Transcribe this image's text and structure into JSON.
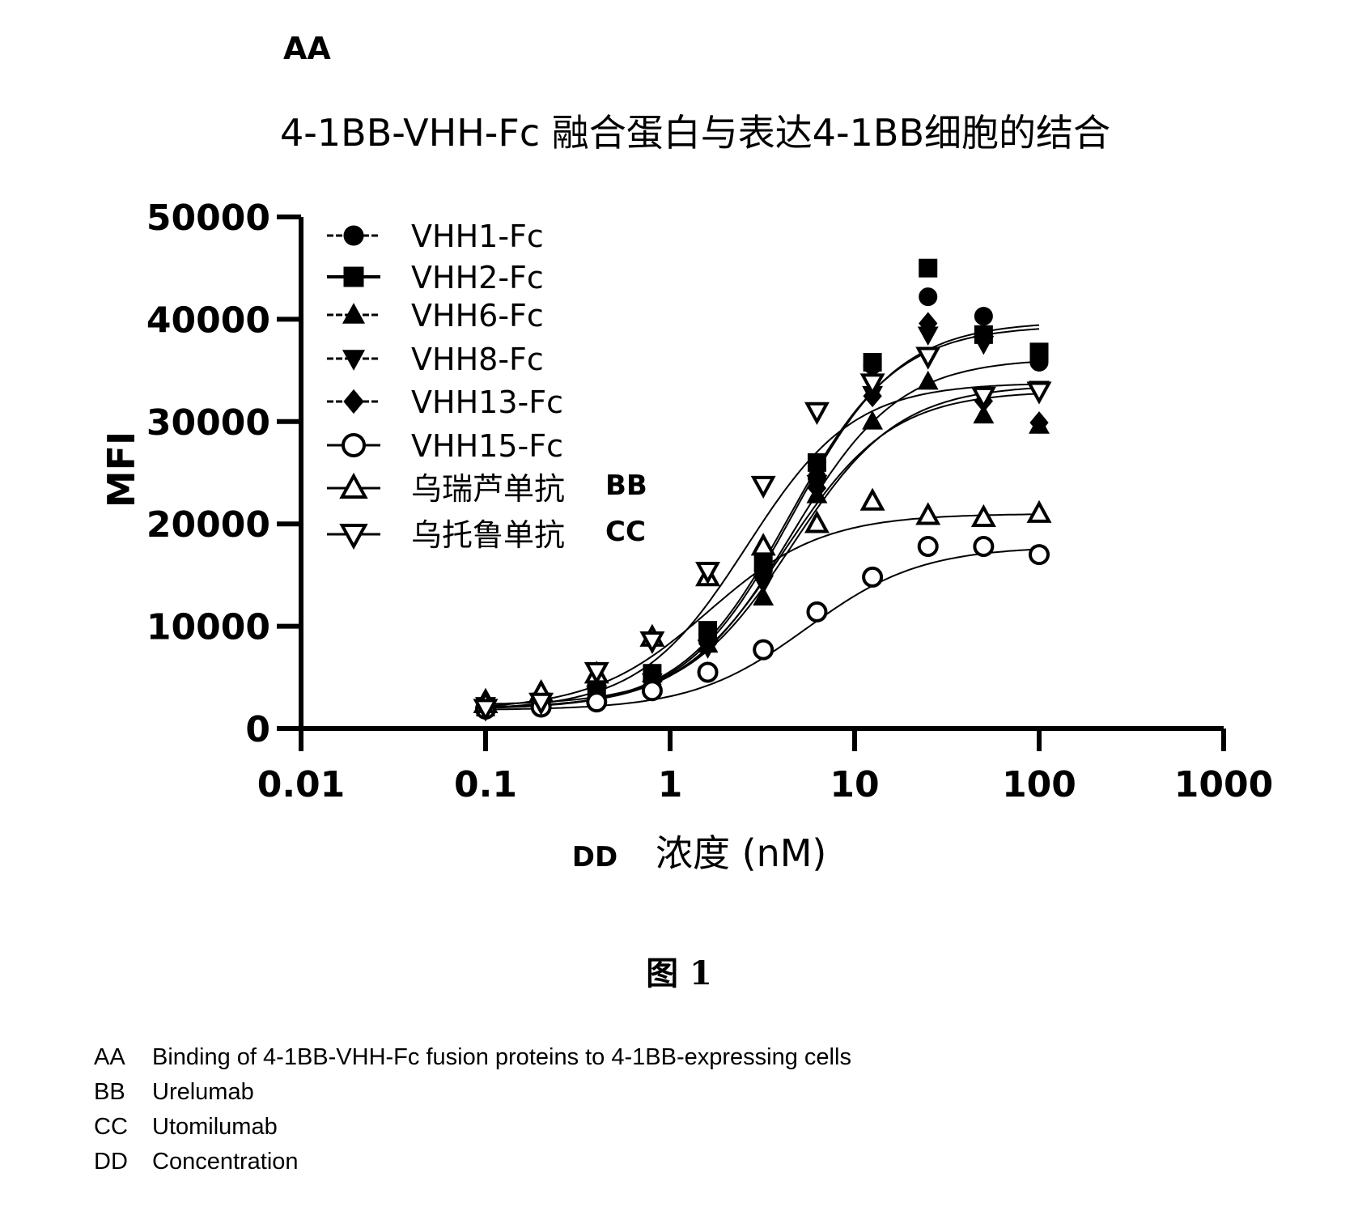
{
  "panel_label": "AA",
  "title": "4-1BB-VHH-Fc 融合蛋白与表达4-1BB细胞的结合",
  "figure_label": "图 1",
  "key": [
    {
      "code": "AA",
      "text": "Binding of 4-1BB-VHH-Fc fusion proteins to 4-1BB-expressing cells"
    },
    {
      "code": "BB",
      "text": "Urelumab"
    },
    {
      "code": "CC",
      "text": "Utomilumab"
    },
    {
      "code": "DD",
      "text": "Concentration"
    }
  ],
  "chart_data": {
    "type": "scatter",
    "title": "4-1BB-VHH-Fc 融合蛋白与表达4-1BB细胞的结合",
    "xlabel": "浓度 (nM)",
    "xlabel_code": "DD",
    "ylabel": "MFI",
    "xscale": "log",
    "xlim": [
      0.01,
      1000
    ],
    "ylim": [
      0,
      50000
    ],
    "xticks": [
      "0.01",
      "0.1",
      "1",
      "10",
      "100",
      "1000"
    ],
    "yticks": [
      "0",
      "10000",
      "20000",
      "30000",
      "40000",
      "50000"
    ],
    "legend_position": "top-left",
    "x": [
      0.1,
      0.2,
      0.4,
      0.8,
      1.6,
      3.2,
      6.25,
      12.5,
      25,
      50,
      100
    ],
    "series": [
      {
        "name": "VHH1-Fc",
        "marker": "circle-filled",
        "values": [
          2000,
          2500,
          3100,
          4800,
          8600,
          15500,
          24500,
          35500,
          42200,
          40300,
          35800
        ],
        "fit": {
          "bottom": 1900,
          "top": 39800,
          "ec50": 4.6,
          "hill": 1.5
        }
      },
      {
        "name": "VHH2-Fc",
        "marker": "square-filled",
        "values": [
          2100,
          2600,
          3500,
          5400,
          9600,
          16200,
          26000,
          35800,
          45000,
          38500,
          36800
        ],
        "fit": {
          "bottom": 1900,
          "top": 39400,
          "ec50": 4.4,
          "hill": 1.5
        }
      },
      {
        "name": "VHH6-Fc",
        "marker": "triangle-up-filled",
        "values": [
          2900,
          3600,
          4900,
          5300,
          8200,
          12800,
          22800,
          30000,
          33900,
          30600,
          29600
        ],
        "fit": {
          "bottom": 2300,
          "top": 33600,
          "ec50": 4.6,
          "hill": 1.5
        }
      },
      {
        "name": "VHH8-Fc",
        "marker": "triangle-down-filled",
        "values": [
          2300,
          2700,
          3300,
          4600,
          7900,
          14200,
          24000,
          32700,
          38500,
          37600,
          33200
        ],
        "fit": {
          "bottom": 2000,
          "top": 36200,
          "ec50": 4.6,
          "hill": 1.5
        }
      },
      {
        "name": "VHH13-Fc",
        "marker": "diamond-filled",
        "values": [
          1900,
          2400,
          2700,
          4300,
          8300,
          15800,
          23500,
          32500,
          39600,
          32000,
          29900
        ],
        "fit": {
          "bottom": 2000,
          "top": 33000,
          "ec50": 4.2,
          "hill": 1.5
        }
      },
      {
        "name": "VHH15-Fc",
        "marker": "circle-open",
        "values": [
          1900,
          2100,
          2600,
          3700,
          5500,
          7700,
          11400,
          14800,
          17800,
          17800,
          17000
        ],
        "fit": {
          "bottom": 1800,
          "top": 17800,
          "ec50": 5.5,
          "hill": 1.4
        }
      },
      {
        "name": "乌瑞芦单抗",
        "name_code": "BB",
        "marker": "triangle-up-open",
        "values": [
          2400,
          3500,
          5300,
          8900,
          14800,
          17800,
          20000,
          22200,
          20800,
          20600,
          21000
        ],
        "fit": {
          "bottom": 1800,
          "top": 21000,
          "ec50": 1.6,
          "hill": 1.4
        }
      },
      {
        "name": "乌托鲁单抗",
        "name_code": "CC",
        "marker": "triangle-down-open",
        "values": [
          2000,
          2600,
          5600,
          8600,
          15400,
          23800,
          31000,
          33800,
          36400,
          32500,
          33000
        ],
        "fit": {
          "bottom": 1800,
          "top": 33800,
          "ec50": 2.6,
          "hill": 1.5
        }
      }
    ]
  }
}
